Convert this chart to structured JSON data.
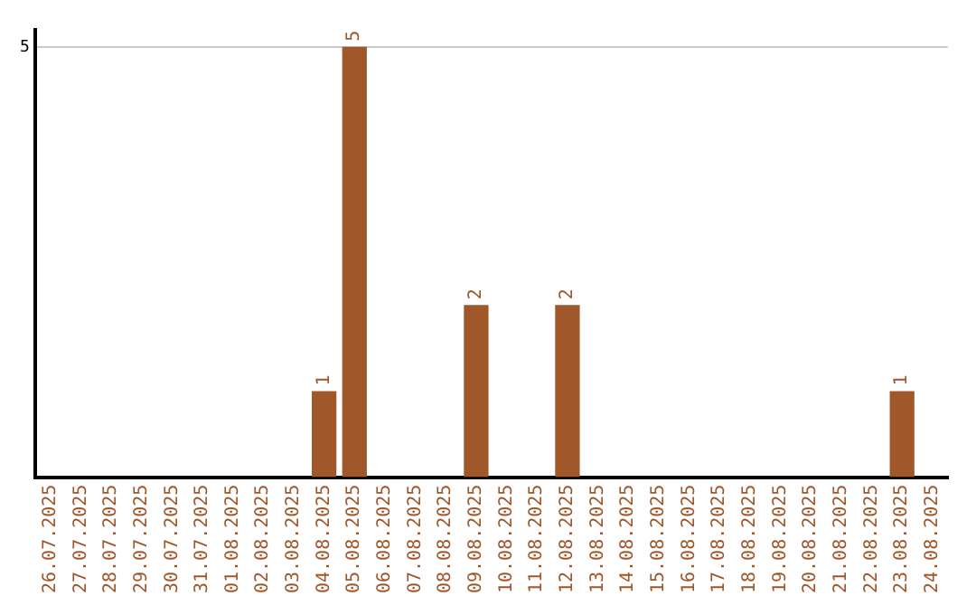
{
  "chart_data": {
    "type": "bar",
    "categories": [
      "26.07.2025",
      "27.07.2025",
      "28.07.2025",
      "29.07.2025",
      "30.07.2025",
      "31.07.2025",
      "01.08.2025",
      "02.08.2025",
      "03.08.2025",
      "04.08.2025",
      "05.08.2025",
      "06.08.2025",
      "07.08.2025",
      "08.08.2025",
      "09.08.2025",
      "10.08.2025",
      "11.08.2025",
      "12.08.2025",
      "13.08.2025",
      "14.08.2025",
      "15.08.2025",
      "16.08.2025",
      "17.08.2025",
      "18.08.2025",
      "19.08.2025",
      "20.08.2025",
      "21.08.2025",
      "22.08.2025",
      "23.08.2025",
      "24.08.2025"
    ],
    "values": [
      0,
      0,
      0,
      0,
      0,
      0,
      0,
      0,
      0,
      1,
      5,
      0,
      0,
      0,
      2,
      0,
      0,
      2,
      0,
      0,
      0,
      0,
      0,
      0,
      0,
      0,
      0,
      0,
      1,
      0
    ],
    "value_labels": [
      null,
      null,
      null,
      null,
      null,
      null,
      null,
      null,
      null,
      "1",
      "5",
      null,
      null,
      null,
      "2",
      null,
      null,
      "2",
      null,
      null,
      null,
      null,
      null,
      null,
      null,
      null,
      null,
      null,
      "1",
      null
    ],
    "color": "#a0572a",
    "ylim": [
      0,
      5.2
    ],
    "yticks": [
      5
    ],
    "grid": "y",
    "legend": false
  }
}
